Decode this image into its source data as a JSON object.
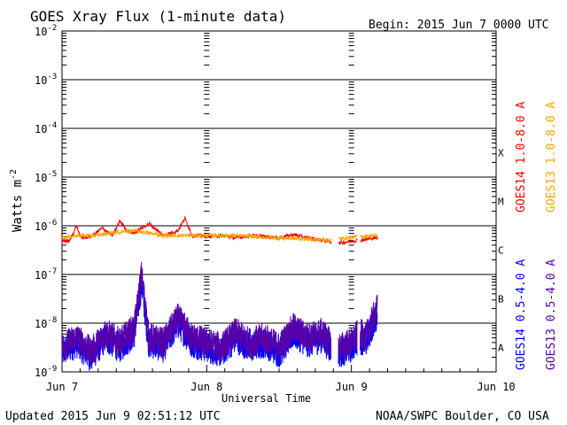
{
  "chart_data": {
    "type": "line",
    "title": "GOES Xray Flux (1-minute data)",
    "begin": "Begin:  2015 Jun 7 0000 UTC",
    "ylabel": "Watts m",
    "ylabel_sup": "-2",
    "xlabel": "Universal Time",
    "y_scale": "log",
    "ylim_exp": [
      -9,
      -2
    ],
    "y_ticks": [
      {
        "base": "10",
        "exp": "-2"
      },
      {
        "base": "10",
        "exp": "-3"
      },
      {
        "base": "10",
        "exp": "-4"
      },
      {
        "base": "10",
        "exp": "-5"
      },
      {
        "base": "10",
        "exp": "-6"
      },
      {
        "base": "10",
        "exp": "-7"
      },
      {
        "base": "10",
        "exp": "-8"
      },
      {
        "base": "10",
        "exp": "-9"
      }
    ],
    "x_ticks": [
      "Jun 7",
      "Jun 8",
      "Jun 9",
      "Jun 10"
    ],
    "xlim_days": [
      0,
      3
    ],
    "flare_classes": [
      {
        "label": "X",
        "exp": -4
      },
      {
        "label": "M",
        "exp": -5
      },
      {
        "label": "C",
        "exp": -6
      },
      {
        "label": "B",
        "exp": -7
      },
      {
        "label": "A",
        "exp": -8
      }
    ],
    "data_gaps_days": [
      [
        1.86,
        1.91
      ],
      [
        2.04,
        2.06
      ]
    ],
    "data_end_day": 2.18,
    "series": [
      {
        "name": "GOES14 1.0-8.0 A",
        "color": "#ff0000",
        "band": "long",
        "points": [
          [
            0,
            -6.3
          ],
          [
            0.05,
            -6.32
          ],
          [
            0.1,
            -6.0
          ],
          [
            0.13,
            -6.25
          ],
          [
            0.2,
            -6.22
          ],
          [
            0.28,
            -6.05
          ],
          [
            0.35,
            -6.2
          ],
          [
            0.4,
            -5.9
          ],
          [
            0.45,
            -6.1
          ],
          [
            0.5,
            -6.15
          ],
          [
            0.6,
            -5.95
          ],
          [
            0.7,
            -6.2
          ],
          [
            0.8,
            -6.1
          ],
          [
            0.85,
            -5.85
          ],
          [
            0.9,
            -6.2
          ],
          [
            1,
            -6.22
          ],
          [
            1.1,
            -6.2
          ],
          [
            1.2,
            -6.25
          ],
          [
            1.3,
            -6.2
          ],
          [
            1.4,
            -6.22
          ],
          [
            1.5,
            -6.25
          ],
          [
            1.6,
            -6.18
          ],
          [
            1.7,
            -6.25
          ],
          [
            1.8,
            -6.3
          ],
          [
            1.92,
            -6.35
          ],
          [
            2.04,
            -6.3
          ],
          [
            2.1,
            -6.28
          ],
          [
            2.15,
            -6.25
          ],
          [
            2.18,
            -6.25
          ]
        ]
      },
      {
        "name": "GOES13 1.0-8.0 A",
        "color": "#ffa500",
        "band": "long",
        "points": [
          [
            0,
            -6.25
          ],
          [
            0.1,
            -6.2
          ],
          [
            0.2,
            -6.2
          ],
          [
            0.35,
            -6.15
          ],
          [
            0.5,
            -6.1
          ],
          [
            0.7,
            -6.2
          ],
          [
            1,
            -6.2
          ],
          [
            1.2,
            -6.2
          ],
          [
            1.5,
            -6.25
          ],
          [
            1.75,
            -6.28
          ],
          [
            1.85,
            -6.3
          ],
          [
            2.04,
            -6.22
          ],
          [
            2.18,
            -6.2
          ]
        ]
      },
      {
        "name": "GOES14 0.5-4.0 A",
        "color": "#0000ff",
        "band": "short",
        "points": [
          [
            0,
            -8.6
          ],
          [
            0.1,
            -8.4
          ],
          [
            0.2,
            -8.7
          ],
          [
            0.3,
            -8.3
          ],
          [
            0.4,
            -8.5
          ],
          [
            0.5,
            -8.2
          ],
          [
            0.55,
            -7.2
          ],
          [
            0.6,
            -8.4
          ],
          [
            0.7,
            -8.5
          ],
          [
            0.8,
            -8.0
          ],
          [
            0.9,
            -8.4
          ],
          [
            1,
            -8.5
          ],
          [
            1.1,
            -8.6
          ],
          [
            1.2,
            -8.3
          ],
          [
            1.3,
            -8.5
          ],
          [
            1.4,
            -8.4
          ],
          [
            1.5,
            -8.6
          ],
          [
            1.6,
            -8.2
          ],
          [
            1.7,
            -8.4
          ],
          [
            1.8,
            -8.3
          ],
          [
            1.85,
            -8.5
          ],
          [
            1.92,
            -8.6
          ],
          [
            2,
            -8.5
          ],
          [
            2.05,
            -8.3
          ],
          [
            2.1,
            -8.4
          ],
          [
            2.15,
            -8.0
          ],
          [
            2.18,
            -7.8
          ]
        ]
      },
      {
        "name": "GOES13 0.5-4.0 A",
        "color": "#5500aa",
        "band": "short",
        "points": [
          [
            0,
            -8.5
          ],
          [
            0.1,
            -8.3
          ],
          [
            0.2,
            -8.6
          ],
          [
            0.3,
            -8.2
          ],
          [
            0.4,
            -8.4
          ],
          [
            0.5,
            -8.1
          ],
          [
            0.55,
            -7.0
          ],
          [
            0.6,
            -8.3
          ],
          [
            0.7,
            -8.4
          ],
          [
            0.8,
            -7.9
          ],
          [
            0.9,
            -8.3
          ],
          [
            1,
            -8.4
          ],
          [
            1.1,
            -8.5
          ],
          [
            1.2,
            -8.2
          ],
          [
            1.3,
            -8.4
          ],
          [
            1.4,
            -8.3
          ],
          [
            1.5,
            -8.5
          ],
          [
            1.6,
            -8.1
          ],
          [
            1.7,
            -8.3
          ],
          [
            1.8,
            -8.2
          ],
          [
            1.85,
            -8.4
          ],
          [
            1.92,
            -8.5
          ],
          [
            2,
            -8.4
          ],
          [
            2.05,
            -8.2
          ],
          [
            2.1,
            -8.3
          ],
          [
            2.15,
            -7.9
          ],
          [
            2.18,
            -7.7
          ]
        ]
      }
    ],
    "updated": "Updated 2015 Jun  9 02:51:12 UTC",
    "credit": "NOAA/SWPC Boulder, CO USA"
  }
}
